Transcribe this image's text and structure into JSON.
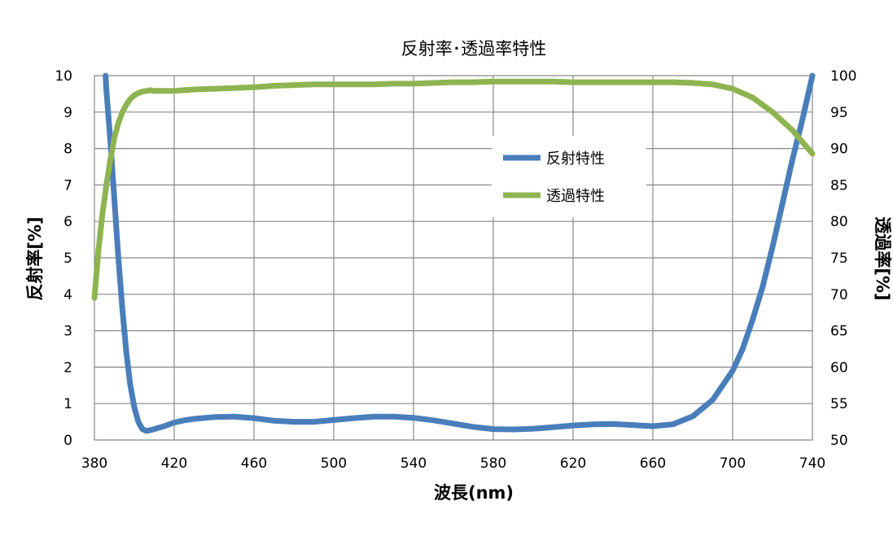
{
  "chart_data": {
    "type": "line",
    "title": "反射率･透過率特性",
    "xlabel": "波長(nm)",
    "ylabel_left": "反射率[%]",
    "ylabel_right": "透過率[%]",
    "xlim": [
      380,
      740
    ],
    "ylim_left": [
      0,
      10
    ],
    "ylim_right": [
      50,
      100
    ],
    "x_ticks": [
      380,
      420,
      460,
      500,
      540,
      580,
      620,
      660,
      700,
      740
    ],
    "y_left_ticks": [
      0,
      1,
      2,
      3,
      4,
      5,
      6,
      7,
      8,
      9,
      10
    ],
    "y_right_ticks": [
      50,
      55,
      60,
      65,
      70,
      75,
      80,
      85,
      90,
      95,
      100
    ],
    "grid": true,
    "legend_position": "center-right",
    "series": [
      {
        "name": "反射特性",
        "axis": "left",
        "color": "#4a7ebb",
        "x": [
          385.6,
          386,
          388,
          390,
          392,
          394,
          396,
          398,
          400,
          402,
          404,
          406,
          408,
          410,
          415,
          420,
          425,
          430,
          440,
          450,
          460,
          470,
          480,
          490,
          500,
          510,
          520,
          530,
          540,
          550,
          560,
          570,
          580,
          590,
          600,
          610,
          620,
          630,
          640,
          650,
          660,
          670,
          680,
          690,
          700,
          705,
          710,
          715,
          720,
          725,
          730,
          735,
          740
        ],
        "values": [
          10,
          9.6,
          8.2,
          6.6,
          5.0,
          3.6,
          2.4,
          1.5,
          0.9,
          0.5,
          0.3,
          0.25,
          0.27,
          0.3,
          0.38,
          0.48,
          0.54,
          0.58,
          0.63,
          0.64,
          0.6,
          0.53,
          0.5,
          0.5,
          0.55,
          0.6,
          0.64,
          0.64,
          0.61,
          0.54,
          0.45,
          0.36,
          0.3,
          0.29,
          0.31,
          0.35,
          0.4,
          0.43,
          0.44,
          0.41,
          0.38,
          0.43,
          0.65,
          1.1,
          1.9,
          2.5,
          3.3,
          4.2,
          5.3,
          6.5,
          7.7,
          8.8,
          10
        ]
      },
      {
        "name": "透過特性",
        "axis": "right",
        "color": "#8eb451",
        "x": [
          380,
          382,
          384,
          386,
          388,
          390,
          392,
          394,
          396,
          398,
          400,
          402,
          404,
          406,
          408,
          410,
          420,
          430,
          440,
          450,
          460,
          470,
          480,
          490,
          500,
          510,
          520,
          530,
          540,
          550,
          560,
          570,
          580,
          590,
          600,
          610,
          620,
          630,
          640,
          650,
          660,
          670,
          680,
          690,
          700,
          710,
          720,
          730,
          740
        ],
        "values": [
          69.5,
          76.0,
          81.0,
          85.0,
          88.5,
          91.5,
          93.5,
          95.0,
          96.0,
          96.8,
          97.3,
          97.6,
          97.8,
          97.9,
          98.0,
          97.9,
          97.9,
          98.1,
          98.2,
          98.3,
          98.4,
          98.6,
          98.7,
          98.8,
          98.8,
          98.8,
          98.8,
          98.9,
          98.9,
          99.0,
          99.1,
          99.1,
          99.2,
          99.2,
          99.2,
          99.2,
          99.1,
          99.1,
          99.1,
          99.1,
          99.1,
          99.1,
          99.0,
          98.8,
          98.2,
          97.0,
          95.0,
          92.5,
          89.3
        ]
      }
    ]
  }
}
